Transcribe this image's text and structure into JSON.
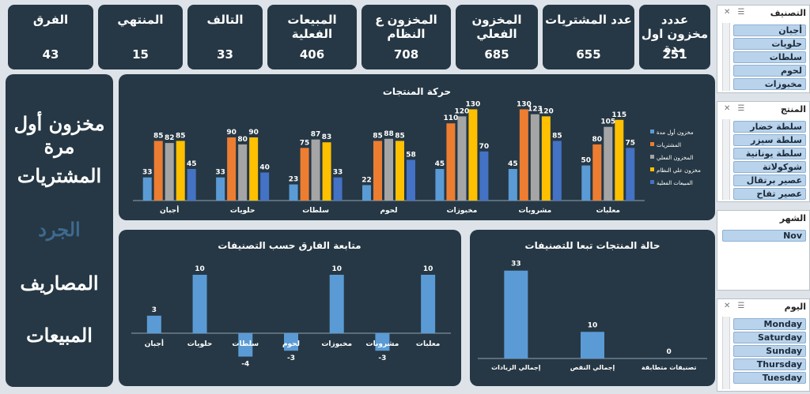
{
  "kpis": [
    {
      "label": "عددد مخزون اول مدة",
      "value": "251"
    },
    {
      "label": "عدد المشتريات",
      "value": "655"
    },
    {
      "label": "المخزون الفعلي",
      "value": "685"
    },
    {
      "label": "المخزون ع النظام",
      "value": "708"
    },
    {
      "label": "المبيعات الفعلية",
      "value": "406"
    },
    {
      "label": "التالف",
      "value": "33"
    },
    {
      "label": "المنتهي",
      "value": "15"
    },
    {
      "label": "الفرق",
      "value": "43"
    }
  ],
  "nav": {
    "items": [
      {
        "label": "مخزون أول مرة"
      },
      {
        "label": "المشتريات"
      },
      {
        "label": "الجرد"
      },
      {
        "label": "المصاريف"
      },
      {
        "label": "المبيعات"
      }
    ],
    "active_index": 2
  },
  "slicers": {
    "category": {
      "title": "التصنيف",
      "items": [
        "أجبان",
        "حلويات",
        "سلطات",
        "لحوم",
        "مخبوزات"
      ]
    },
    "product": {
      "title": "المنتج",
      "items": [
        "سلطة خضار",
        "سلطة سيزر",
        "سلطة يونانية",
        "شوكولاتة",
        "عصير برتقال",
        "عصير تفاح"
      ]
    },
    "month": {
      "title": "الشهر",
      "items": [
        "Nov"
      ]
    },
    "day": {
      "title": "اليوم",
      "items": [
        "Monday",
        "Saturday",
        "Sunday",
        "Thursday",
        "Tuesday"
      ]
    }
  },
  "chart_data": [
    {
      "type": "bar",
      "title": "حركة المنتجات",
      "categories": [
        "أجبان",
        "حلويات",
        "سلطات",
        "لحوم",
        "مخبوزات",
        "مشروبات",
        "معلبات"
      ],
      "series": [
        {
          "name": "مخزون أول مدة",
          "color": "#5b9bd5",
          "values": [
            33,
            33,
            23,
            22,
            45,
            45,
            50
          ]
        },
        {
          "name": "المشتريات",
          "color": "#ed7d31",
          "values": [
            85,
            90,
            75,
            85,
            110,
            130,
            80
          ]
        },
        {
          "name": "المخزون الفعلي",
          "color": "#a5a5a5",
          "values": [
            82,
            80,
            87,
            88,
            120,
            123,
            105
          ]
        },
        {
          "name": "مخزون علي النظام",
          "color": "#ffc000",
          "values": [
            85,
            90,
            83,
            85,
            130,
            120,
            115
          ]
        },
        {
          "name": "المبيعات الفعلية",
          "color": "#4472c4",
          "values": [
            45,
            40,
            33,
            58,
            70,
            85,
            75
          ]
        }
      ],
      "ylim": [
        0,
        135
      ],
      "legend": "right",
      "grid": false
    },
    {
      "type": "bar",
      "title": "متابعة الفارق حسب التصنيفات",
      "categories": [
        "أجبان",
        "حلويات",
        "سلطات",
        "لحوم",
        "مخبوزات",
        "مشروبات",
        "معلبات"
      ],
      "values": [
        3,
        10,
        -4,
        -3,
        10,
        -3,
        10
      ],
      "color": "#5b9bd5",
      "ylim": [
        -5,
        11
      ],
      "grid": false
    },
    {
      "type": "bar",
      "title": "حالة المنتجات تبعا للتصنيفات",
      "categories": [
        "إجمالي الزيادات",
        "إجمالي النقص",
        "تصنيفات متطابقة"
      ],
      "values": [
        33,
        10,
        0
      ],
      "color": "#5b9bd5",
      "ylim": [
        0,
        35
      ],
      "grid": false
    }
  ]
}
